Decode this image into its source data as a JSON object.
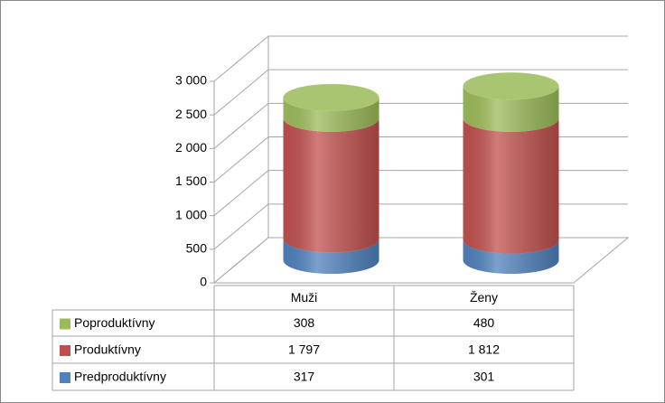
{
  "chart_data": {
    "type": "cylinder3d-stacked",
    "categories": [
      "Muži",
      "Ženy"
    ],
    "series": [
      {
        "name": "Predproduktívny",
        "color": "#4f81bd",
        "values": [
          317,
          301
        ],
        "value_labels": [
          "317",
          "301"
        ]
      },
      {
        "name": "Produktívny",
        "color": "#c0504d",
        "values": [
          1797,
          1812
        ],
        "value_labels": [
          "1 797",
          "1 812"
        ]
      },
      {
        "name": "Poproduktívny",
        "color": "#9bbb59",
        "values": [
          308,
          480
        ],
        "value_labels": [
          "308",
          "480"
        ]
      }
    ],
    "ylim": [
      0,
      3000
    ],
    "yticks": [
      0,
      500,
      {
        "value": 1000,
        "label": "1 000"
      },
      {
        "value": 1500,
        "label": "1 500"
      },
      {
        "value": 2000,
        "label": "2 000"
      },
      {
        "value": 2500,
        "label": "2 500"
      },
      {
        "value": 3000,
        "label": "3 000"
      }
    ],
    "grid": true
  }
}
